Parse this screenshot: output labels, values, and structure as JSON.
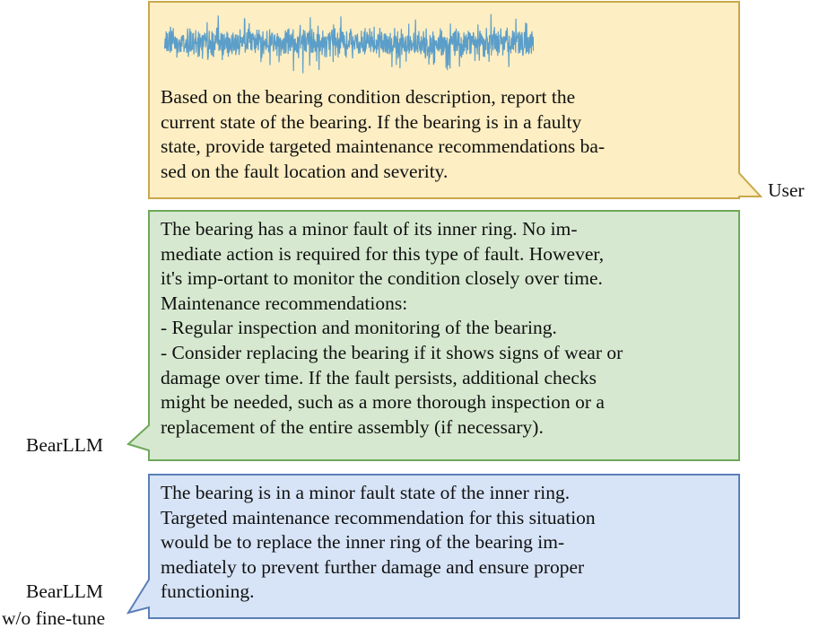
{
  "colors": {
    "user_fill": "#fdeec3",
    "user_stroke": "#c9a84a",
    "bearllm_fill": "#d6e9d0",
    "bearllm_stroke": "#6ea85a",
    "base_fill": "#d7e4f7",
    "base_stroke": "#5a7fb8",
    "signal": "#5b9ec9"
  },
  "user": {
    "speaker": "User",
    "signal_icon": "vibration-signal-waveform",
    "lines": [
      "Based on the bearing condition description, report the",
      "current state of the bearing. If the bearing is in a faulty",
      "state, provide targeted maintenance recommendations ba-",
      "sed on the fault location and severity."
    ]
  },
  "bearllm": {
    "speaker": "BearLLM",
    "lines": [
      "The bearing has a minor fault of its inner ring. No im-",
      "mediate action is required for this type of fault. However,",
      "it's imp-ortant to monitor the condition closely over time.",
      "Maintenance recommendations:",
      "- Regular inspection and monitoring of the bearing.",
      "- Consider replacing the bearing if it shows signs of wear or",
      "damage over time. If the fault persists, additional checks",
      "might be needed, such as a more thorough inspection or a",
      "replacement of the entire assembly (if necessary)."
    ]
  },
  "baseline": {
    "speaker_line1": "BearLLM",
    "speaker_line2": "w/o fine-tune",
    "lines": [
      "The bearing is in a minor fault state of the inner ring.",
      "Targeted maintenance recommendation for this situation",
      "would be to replace the inner ring of the bearing im-",
      "mediately to prevent further damage and ensure proper",
      "functioning."
    ]
  }
}
